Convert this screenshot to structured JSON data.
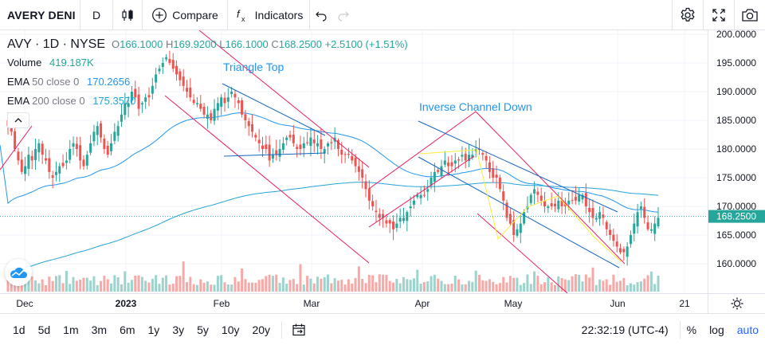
{
  "toolbar": {
    "symbol": "AVERY DENI",
    "interval": "D",
    "compare_label": "Compare",
    "indicators_label": "Indicators",
    "icons": [
      "candles-icon",
      "plus-circle-icon",
      "fx-icon",
      "undo-icon",
      "redo-icon",
      "gear-icon",
      "fullscreen-icon",
      "camera-icon"
    ]
  },
  "legend": {
    "title": "AVY · 1D · NYSE",
    "open_label": "O",
    "open": "166.1000",
    "high_label": "H",
    "high": "169.9200",
    "low_label": "L",
    "low": "166.1000",
    "close_label": "C",
    "close": "168.2500",
    "change": "+2.5100 (+1.51%)",
    "volume_label": "Volume",
    "volume_value": "419.187K",
    "ema50_label": "EMA",
    "ema50_params": "50 close 0",
    "ema50_value": "170.2656",
    "ema200_label": "EMA",
    "ema200_params": "200 close 0",
    "ema200_value": "175.3570"
  },
  "annotations": {
    "triangle_top": "Triangle Top",
    "inverse_channel": "Inverse Channel Down"
  },
  "price_axis": {
    "labels": [
      "200.0000",
      "195.0000",
      "190.0000",
      "185.0000",
      "180.0000",
      "175.0000",
      "170.0000",
      "165.0000",
      "160.0000"
    ],
    "last_price": "168.2500"
  },
  "time_axis": {
    "labels": [
      "Dec",
      "2023",
      "Feb",
      "Mar",
      "Apr",
      "May",
      "Jun",
      "21"
    ]
  },
  "bottom_bar": {
    "ranges": [
      "1d",
      "5d",
      "1m",
      "3m",
      "6m",
      "1y",
      "3y",
      "5y",
      "10y",
      "20y"
    ],
    "time": "22:32:19 (UTC-4)",
    "percent_label": "%",
    "log_label": "log",
    "auto_label": "auto"
  },
  "colors": {
    "up": "#26a69a",
    "down": "#ef5350",
    "ema50": "#2196f3",
    "ema200": "#26a3d9",
    "pattern_pink": "#e91e63",
    "pattern_blue": "#1565c0",
    "pattern_yellow": "#ffeb3b",
    "volume_up": "#9dd3cd",
    "volume_down": "#f7a9a7"
  },
  "chart_data": {
    "type": "candlestick",
    "symbol": "AVY",
    "interval": "1D",
    "exchange": "NYSE",
    "ylim": [
      157,
      201
    ],
    "x_ticks": [
      "Dec",
      "2023",
      "Feb",
      "Mar",
      "Apr",
      "May",
      "Jun",
      "21"
    ],
    "y_ticks": [
      200,
      195,
      190,
      185,
      180,
      175,
      170,
      165,
      160
    ],
    "last": {
      "open": 166.1,
      "high": 169.92,
      "low": 166.1,
      "close": 168.25,
      "change": 2.51,
      "change_pct": 1.51
    },
    "ema50_last": 170.2656,
    "ema200_last": 175.357,
    "volume_last": "419.187K",
    "series": [
      {
        "name": "AVY",
        "close": [
          184,
          183,
          180,
          178,
          176,
          177,
          179,
          178,
          180,
          181,
          179,
          178,
          176,
          175,
          176,
          177,
          177,
          178,
          180,
          181,
          180,
          178,
          177,
          179,
          181,
          183,
          184,
          182,
          180,
          179,
          181,
          183,
          184,
          186,
          188,
          188,
          190,
          189,
          187,
          188,
          189,
          189,
          191,
          193,
          194,
          195,
          196,
          195,
          194,
          193,
          192,
          191,
          190,
          189,
          188,
          188,
          187,
          186,
          186,
          185,
          187,
          188,
          189,
          188,
          189,
          190,
          189,
          188,
          186,
          185,
          184,
          183,
          182,
          181,
          180,
          180,
          178,
          179,
          179,
          180,
          181,
          182,
          182,
          181,
          180,
          180,
          181,
          181,
          182,
          181,
          181,
          180,
          180,
          181,
          181,
          182,
          180,
          179,
          179,
          179,
          178,
          177,
          176,
          175,
          173,
          171,
          170,
          169,
          168,
          168,
          167,
          167,
          166,
          167,
          168,
          168,
          169,
          170,
          171,
          172,
          172,
          172,
          173,
          175,
          176,
          176,
          177,
          178,
          177,
          177,
          178,
          178,
          179,
          178,
          179,
          179,
          180,
          180,
          179,
          178,
          176,
          175,
          175,
          173,
          171,
          168,
          167,
          165,
          166,
          167,
          169,
          170,
          172,
          173,
          172,
          171,
          170,
          170,
          170,
          170,
          171,
          170,
          170,
          171,
          171,
          171,
          172,
          172,
          170,
          169,
          168,
          168,
          169,
          168,
          166,
          165,
          164,
          163,
          162,
          162,
          163,
          165,
          167,
          169,
          170,
          168,
          166,
          166,
          167,
          168
        ]
      }
    ]
  }
}
